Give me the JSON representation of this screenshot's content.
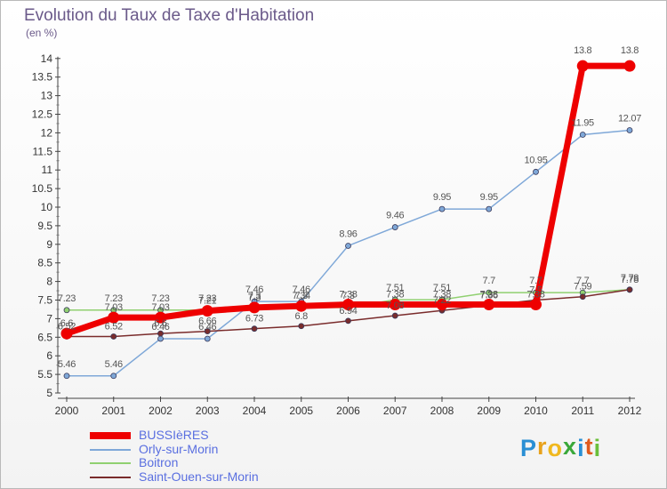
{
  "header": {
    "title": "Evolution du Taux de Taxe d'Habitation",
    "subtitle": "(en %)"
  },
  "logo": {
    "letters": [
      "P",
      "r",
      "o",
      "x",
      "i",
      "t",
      "i"
    ],
    "colors": [
      "#2a8fd4",
      "#e8a21c",
      "#f0b81e",
      "#3aa83a",
      "#2a8fd4",
      "#e05a1c",
      "#6abf3a"
    ]
  },
  "chart_data": {
    "type": "line",
    "title": "Evolution du Taux de Taxe d'Habitation",
    "ylabel": "(en %)",
    "xlabel": "",
    "x": [
      "2000",
      "2001",
      "2002",
      "2003",
      "2004",
      "2005",
      "2006",
      "2007",
      "2008",
      "2009",
      "2010",
      "2011",
      "2012"
    ],
    "ylim": [
      5,
      14
    ],
    "yticks": [
      "5",
      "5.5",
      "6",
      "6.5",
      "7",
      "7.5",
      "8",
      "8.5",
      "9",
      "9.5",
      "10",
      "10.5",
      "11",
      "11.5",
      "12",
      "12.5",
      "13",
      "13.5",
      "14"
    ],
    "grid": false,
    "legend_position": "bottom-left",
    "series": [
      {
        "name": "BUSSIèRES",
        "color": "#ee0000",
        "width": 7,
        "values": [
          6.6,
          7.03,
          7.03,
          7.21,
          7.3,
          7.34,
          7.38,
          7.38,
          7.38,
          7.38,
          7.38,
          13.8,
          13.8
        ],
        "labels": [
          "6.6",
          "7.03",
          "7.03",
          "7.21",
          "7.3",
          "7.34",
          "7.38",
          "7.38",
          "7.38",
          "7.38",
          "7.38",
          "13.8",
          "13.8"
        ]
      },
      {
        "name": "Orly-sur-Morin",
        "color": "#7fa8d8",
        "width": 1.5,
        "values": [
          5.46,
          5.46,
          6.46,
          6.46,
          7.46,
          7.46,
          8.96,
          9.46,
          9.95,
          9.95,
          10.95,
          11.95,
          12.07
        ],
        "labels": [
          "5.46",
          "5.46",
          "6.46",
          "6.46",
          "7.46",
          "7.46",
          "8.96",
          "9.46",
          "9.95",
          "9.95",
          "10.95",
          "11.95",
          "12.07"
        ]
      },
      {
        "name": "Boitron",
        "color": "#90d070",
        "width": 1.5,
        "values": [
          7.23,
          7.23,
          7.23,
          7.23,
          7.3,
          7.3,
          7.3,
          7.51,
          7.51,
          7.7,
          7.7,
          7.7,
          7.78
        ],
        "labels": [
          "7.23",
          "7.23",
          "7.23",
          "7.23",
          "7.3",
          "7.3",
          "7.3",
          "7.51",
          "7.51",
          "7.7",
          "7.7",
          "7.7",
          "7.78"
        ]
      },
      {
        "name": "Saint-Ouen-sur-Morin",
        "color": "#7a2c2c",
        "width": 1.5,
        "values": [
          6.52,
          6.52,
          6.6,
          6.66,
          6.73,
          6.8,
          6.94,
          7.08,
          7.22,
          7.36,
          7.5,
          7.59,
          7.78
        ],
        "labels": [
          "6.52",
          "6.52",
          "6.6",
          "6.66",
          "6.73",
          "6.8",
          "6.94",
          "7.08",
          "7.22",
          "7.36",
          "7.5",
          "7.59",
          "7.78"
        ]
      }
    ]
  }
}
